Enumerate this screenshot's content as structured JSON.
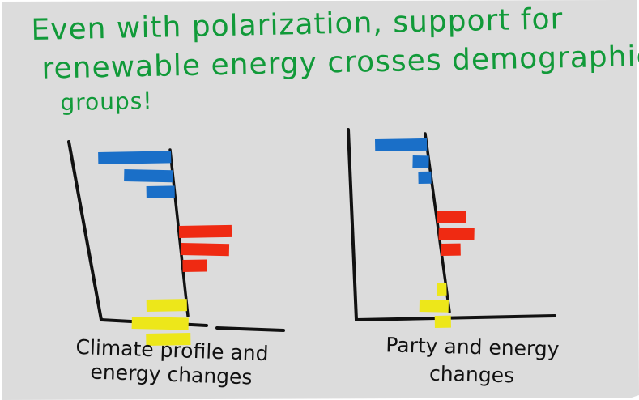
{
  "title_lines": [
    "Even with polarization, support for",
    "renewable energy crosses demographic",
    "groups!"
  ],
  "colors": {
    "paper": "#dcdcdc",
    "title": "#119a39",
    "ink": "#111111",
    "group_colors": [
      "#1a6fc8",
      "#ef2a12",
      "#ede71a"
    ]
  },
  "chart_data": [
    {
      "type": "bar",
      "orientation": "horizontal",
      "caption_lines": [
        "Climate profile and",
        "energy changes"
      ],
      "groups": [
        {
          "color": "#1a6fc8",
          "values": [
            -0.9,
            -0.6,
            -0.35
          ]
        },
        {
          "color": "#ef2a12",
          "values": [
            0.65,
            0.6,
            0.3
          ]
        },
        {
          "color": "#ede71a",
          "values": [
            -0.5,
            -0.7,
            -0.55
          ]
        }
      ]
    },
    {
      "type": "bar",
      "orientation": "horizontal",
      "caption_lines": [
        "Party and energy",
        "changes"
      ],
      "groups": [
        {
          "color": "#1a6fc8",
          "values": [
            -0.8,
            -0.25,
            -0.2
          ]
        },
        {
          "color": "#ef2a12",
          "values": [
            0.45,
            0.55,
            0.3
          ]
        },
        {
          "color": "#ede71a",
          "values": [
            -0.15,
            -0.45,
            -0.25
          ]
        }
      ]
    }
  ]
}
